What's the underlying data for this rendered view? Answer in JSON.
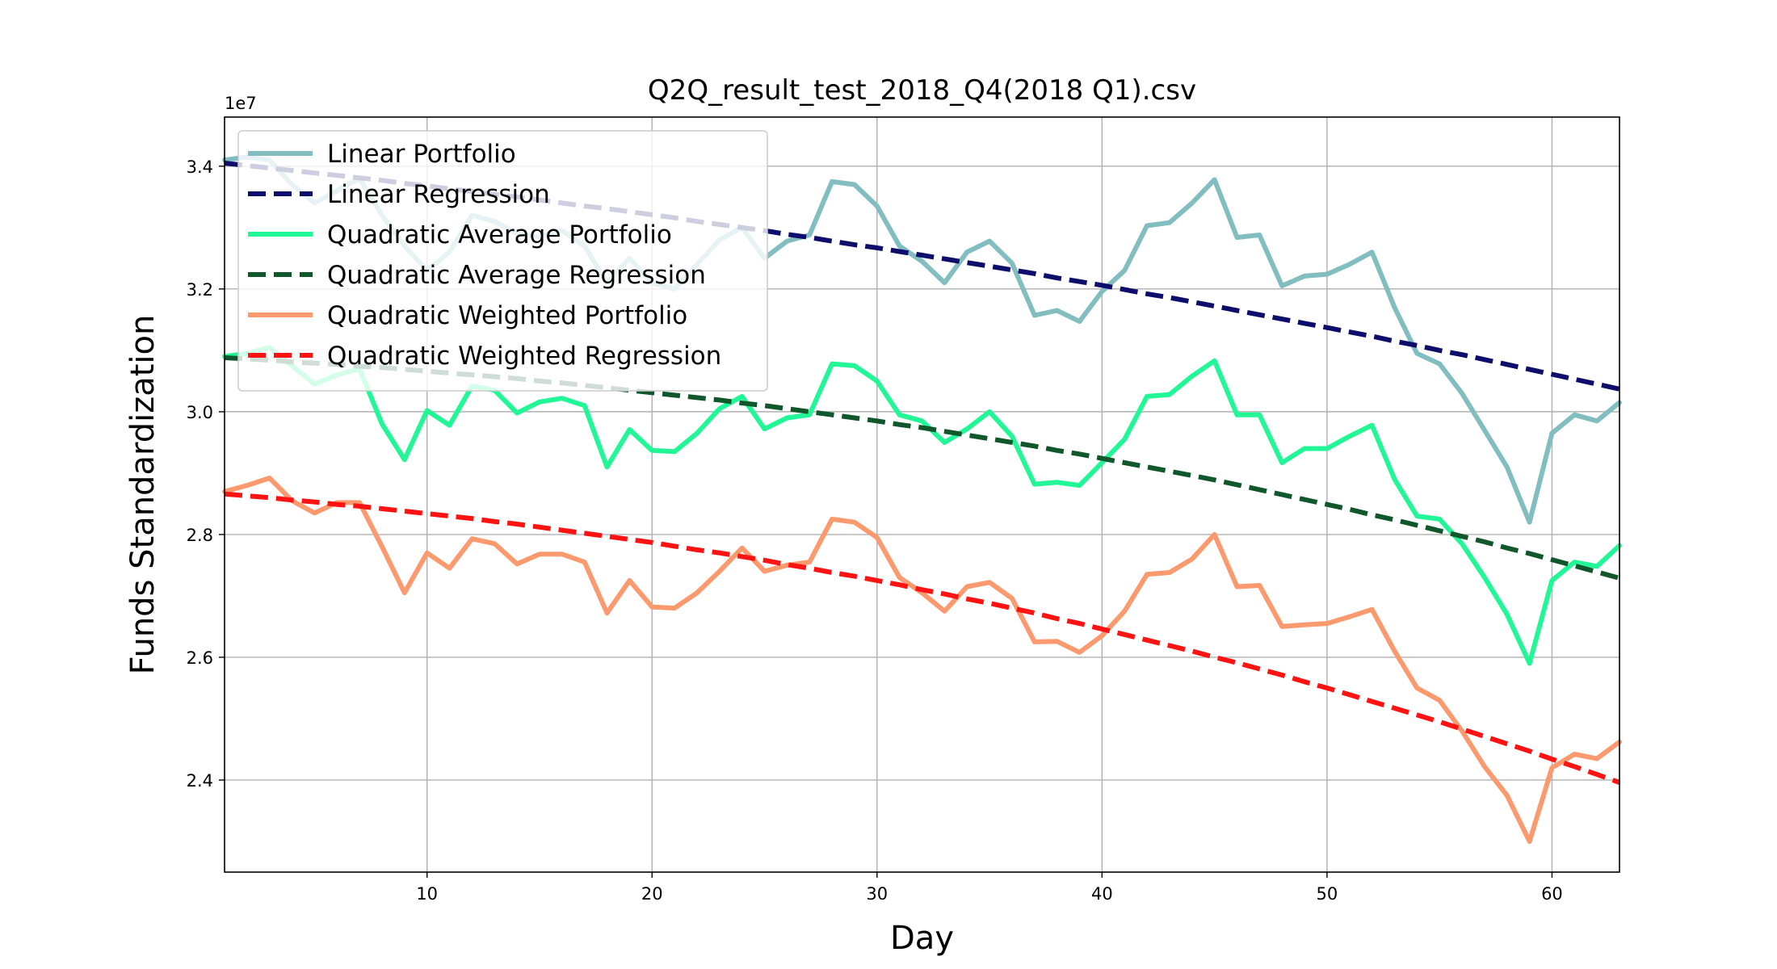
{
  "chart_data": {
    "type": "line",
    "title": "Q2Q_result_test_2018_Q4(2018 Q1).csv",
    "xlabel": "Day",
    "ylabel": "Funds Standardization",
    "y_offset_label": "1e7",
    "xlim": [
      1,
      63
    ],
    "ylim": [
      22.5,
      34.8
    ],
    "x_ticks": [
      10,
      20,
      30,
      40,
      50,
      60
    ],
    "y_ticks": [
      24,
      26,
      28,
      30,
      32,
      34
    ],
    "x_tick_labels": [
      "10",
      "20",
      "30",
      "40",
      "50",
      "60"
    ],
    "y_tick_labels": [
      "2.4",
      "2.6",
      "2.8",
      "3.0",
      "3.2",
      "3.4"
    ],
    "grid": true,
    "legend_position": "top-left",
    "x": [
      1,
      2,
      3,
      4,
      5,
      6,
      7,
      8,
      9,
      10,
      11,
      12,
      13,
      14,
      15,
      16,
      17,
      18,
      19,
      20,
      21,
      22,
      23,
      24,
      25,
      26,
      27,
      28,
      29,
      30,
      31,
      32,
      33,
      34,
      35,
      36,
      37,
      38,
      39,
      40,
      41,
      42,
      43,
      44,
      45,
      46,
      47,
      48,
      49,
      50,
      51,
      52,
      53,
      54,
      55,
      56,
      57,
      58,
      59,
      60,
      61,
      62,
      63
    ],
    "series": [
      {
        "name": "Linear Portfolio",
        "color": "#82bec0",
        "style": "solid",
        "values": [
          34.1,
          34.15,
          34.1,
          33.7,
          33.4,
          33.6,
          33.8,
          33.2,
          32.7,
          32.3,
          32.6,
          33.2,
          33.1,
          32.9,
          32.85,
          32.95,
          32.7,
          32.1,
          32.5,
          32.1,
          32.0,
          32.4,
          32.8,
          33.0,
          32.5,
          32.78,
          32.88,
          33.75,
          33.7,
          33.35,
          32.7,
          32.45,
          32.1,
          32.6,
          32.78,
          32.42,
          31.57,
          31.65,
          31.47,
          31.96,
          32.3,
          33.03,
          33.08,
          33.4,
          33.78,
          32.84,
          32.88,
          32.05,
          32.21,
          32.24,
          32.4,
          32.6,
          31.7,
          30.95,
          30.78,
          30.3,
          29.7,
          29.1,
          28.2,
          29.65,
          29.95,
          29.85,
          30.15
        ]
      },
      {
        "name": "Linear Regression",
        "color": "#0d0d6b",
        "style": "dashed",
        "values": [
          34.05,
          34.01,
          33.97,
          33.93,
          33.89,
          33.85,
          33.81,
          33.77,
          33.72,
          33.68,
          33.63,
          33.59,
          33.54,
          33.5,
          33.45,
          33.4,
          33.35,
          33.31,
          33.26,
          33.21,
          33.16,
          33.1,
          33.05,
          33.0,
          32.95,
          32.89,
          32.84,
          32.78,
          32.72,
          32.67,
          32.61,
          32.55,
          32.49,
          32.43,
          32.37,
          32.31,
          32.25,
          32.18,
          32.12,
          32.06,
          31.99,
          31.92,
          31.86,
          31.79,
          31.72,
          31.65,
          31.58,
          31.51,
          31.44,
          31.37,
          31.3,
          31.23,
          31.15,
          31.08,
          31.0,
          30.93,
          30.85,
          30.77,
          30.69,
          30.61,
          30.53,
          30.45,
          30.37
        ]
      },
      {
        "name": "Quadratic Average Portfolio",
        "color": "#22f798",
        "style": "solid",
        "values": [
          30.9,
          30.95,
          31.05,
          30.75,
          30.45,
          30.6,
          30.7,
          29.8,
          29.22,
          30.02,
          29.78,
          30.42,
          30.35,
          29.98,
          30.16,
          30.22,
          30.1,
          29.1,
          29.71,
          29.37,
          29.35,
          29.65,
          30.05,
          30.25,
          29.72,
          29.9,
          29.95,
          30.78,
          30.75,
          30.5,
          29.95,
          29.85,
          29.5,
          29.72,
          30.0,
          29.6,
          28.82,
          28.85,
          28.8,
          29.17,
          29.55,
          30.25,
          30.28,
          30.58,
          30.83,
          29.95,
          29.95,
          29.17,
          29.4,
          29.4,
          29.6,
          29.78,
          28.9,
          28.3,
          28.25,
          27.85,
          27.3,
          26.7,
          25.9,
          27.25,
          27.55,
          27.48,
          27.82
        ]
      },
      {
        "name": "Quadratic Average Regression",
        "color": "#10572b",
        "style": "dashed",
        "values": [
          30.88,
          30.86,
          30.84,
          30.81,
          30.79,
          30.77,
          30.74,
          30.72,
          30.69,
          30.66,
          30.63,
          30.6,
          30.57,
          30.54,
          30.5,
          30.47,
          30.43,
          30.39,
          30.35,
          30.31,
          30.27,
          30.23,
          30.19,
          30.14,
          30.1,
          30.05,
          30.0,
          29.95,
          29.9,
          29.85,
          29.79,
          29.74,
          29.68,
          29.62,
          29.56,
          29.5,
          29.44,
          29.37,
          29.31,
          29.24,
          29.17,
          29.1,
          29.03,
          28.96,
          28.89,
          28.81,
          28.73,
          28.65,
          28.57,
          28.49,
          28.41,
          28.32,
          28.24,
          28.15,
          28.06,
          27.97,
          27.88,
          27.78,
          27.69,
          27.59,
          27.49,
          27.39,
          27.29
        ]
      },
      {
        "name": "Quadratic Weighted Portfolio",
        "color": "#fb9a6e",
        "style": "solid",
        "values": [
          28.7,
          28.8,
          28.92,
          28.55,
          28.35,
          28.52,
          28.52,
          27.8,
          27.05,
          27.7,
          27.45,
          27.93,
          27.85,
          27.52,
          27.68,
          27.68,
          27.55,
          26.72,
          27.25,
          26.82,
          26.8,
          27.05,
          27.4,
          27.78,
          27.4,
          27.5,
          27.55,
          28.25,
          28.2,
          27.95,
          27.3,
          27.05,
          26.75,
          27.15,
          27.22,
          26.96,
          26.25,
          26.26,
          26.08,
          26.35,
          26.75,
          27.35,
          27.38,
          27.6,
          28.0,
          27.15,
          27.17,
          26.5,
          26.53,
          26.55,
          26.66,
          26.78,
          26.1,
          25.5,
          25.3,
          24.8,
          24.22,
          23.75,
          23.0,
          24.2,
          24.42,
          24.35,
          24.62
        ]
      },
      {
        "name": "Quadratic Weighted Regression",
        "color": "#ff1212",
        "style": "dashed",
        "values": [
          28.66,
          28.63,
          28.6,
          28.56,
          28.53,
          28.49,
          28.46,
          28.42,
          28.38,
          28.34,
          28.3,
          28.26,
          28.21,
          28.17,
          28.12,
          28.07,
          28.02,
          27.97,
          27.92,
          27.87,
          27.81,
          27.75,
          27.7,
          27.64,
          27.58,
          27.51,
          27.45,
          27.38,
          27.32,
          27.25,
          27.18,
          27.1,
          27.03,
          26.95,
          26.88,
          26.8,
          26.72,
          26.63,
          26.55,
          26.46,
          26.37,
          26.28,
          26.19,
          26.1,
          26.0,
          25.91,
          25.81,
          25.71,
          25.6,
          25.5,
          25.39,
          25.28,
          25.17,
          25.06,
          24.95,
          24.83,
          24.71,
          24.59,
          24.47,
          24.34,
          24.22,
          24.09,
          23.96
        ]
      }
    ]
  }
}
